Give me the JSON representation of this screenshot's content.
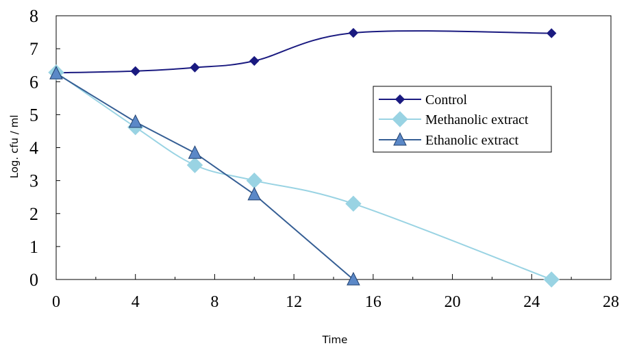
{
  "chart_data": {
    "type": "line",
    "title": "",
    "xlabel": "Time",
    "ylabel": "Log. cfu / ml",
    "xlim": [
      0,
      28
    ],
    "ylim": [
      0,
      8
    ],
    "x_ticks": [
      0,
      4,
      8,
      12,
      16,
      20,
      24,
      28
    ],
    "y_ticks": [
      0,
      1,
      2,
      3,
      4,
      5,
      6,
      7,
      8
    ],
    "grid": false,
    "legend_position": "right",
    "series": [
      {
        "name": "Control",
        "color": "#1a1a80",
        "marker": "diamond-small",
        "x": [
          0,
          4,
          7,
          10,
          15,
          25
        ],
        "y": [
          6.27,
          6.32,
          6.43,
          6.63,
          7.48,
          7.47
        ]
      },
      {
        "name": "Methanolic extract",
        "color": "#99d3e3",
        "marker": "diamond-large",
        "x": [
          0,
          4,
          7,
          10,
          15,
          25
        ],
        "y": [
          6.28,
          4.62,
          3.47,
          3.0,
          2.3,
          0.0
        ]
      },
      {
        "name": "Ethanolic extract",
        "color": "#355e94",
        "marker": "triangle",
        "x": [
          0,
          4,
          7,
          10,
          15
        ],
        "y": [
          6.25,
          4.78,
          3.84,
          2.58,
          0.0
        ]
      }
    ]
  }
}
